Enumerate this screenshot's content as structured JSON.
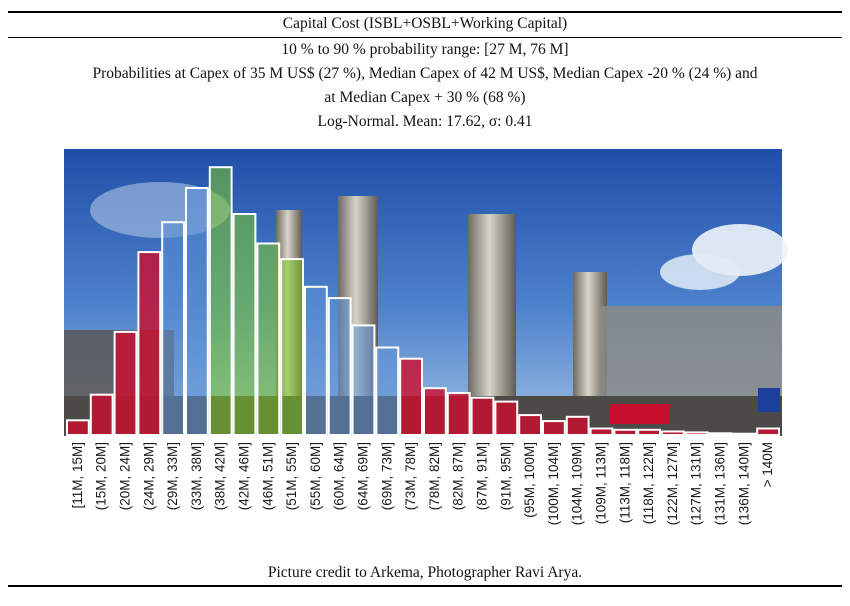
{
  "table": {
    "heading": "Capital Cost (ISBL+OSBL+Working Capital)",
    "range_line": "10 % to 90 % probability range: [27 M, 76 M]",
    "prob_line_1": "Probabilities at Capex of 35 M US$ (27 %), Median Capex of 42 M US$, Median Capex -20 % (24 %) and",
    "prob_line_2": "at Median Capex + 30 % (68 %)",
    "dist_line": "Log-Normal. Mean: 17.62, σ: 0.41",
    "credit": "Picture credit to Arkema, Photographer Ravi Arya."
  },
  "colors": {
    "red": "#c8102e",
    "blue": "#5b8fd6",
    "green": "#7ec825",
    "sky_top": "#1f4fa8",
    "sky_bottom": "#8fb6e0"
  },
  "chart_data": {
    "type": "bar",
    "categories": [
      "[11M, 15M]",
      "(15M, 20M]",
      "(20M, 24M]",
      "(24M, 29M]",
      "(29M, 33M]",
      "(33M, 38M]",
      "(38M, 42M]",
      "(42M, 46M]",
      "(46M, 51M]",
      "(51M, 55M]",
      "(55M, 60M]",
      "(60M, 64M]",
      "(64M, 69M]",
      "(69M, 73M]",
      "(73M, 78M]",
      "(78M, 82M]",
      "(82M, 87M]",
      "(87M, 91M]",
      "(91M, 95M]",
      "(95M, 100M]",
      "(100M, 104M]",
      "(104M, 109M]",
      "(109M, 113M]",
      "(113M, 118M]",
      "(118M, 122M]",
      "(122M, 127M]",
      "(127M, 131M]",
      "(131M, 136M]",
      "(136M, 140M]",
      "> 140M"
    ],
    "values": [
      3.4,
      9.3,
      23.8,
      42.2,
      49.1,
      57.0,
      61.8,
      51.0,
      44.2,
      40.6,
      34.2,
      31.6,
      25.3,
      20.2,
      17.6,
      10.8,
      9.7,
      8.6,
      7.7,
      4.6,
      3.2,
      4.2,
      1.5,
      1.2,
      1.2,
      0.8,
      0.6,
      0.4,
      0.3,
      1.5
    ],
    "band": [
      "red",
      "red",
      "red",
      "red",
      "blue",
      "blue",
      "green",
      "green",
      "green",
      "green",
      "blue",
      "blue",
      "blue",
      "blue",
      "red",
      "red",
      "red",
      "red",
      "red",
      "red",
      "red",
      "red",
      "red",
      "red",
      "red",
      "red",
      "red",
      "red",
      "red",
      "red"
    ],
    "ylim": [
      0,
      66
    ],
    "title": "",
    "xlabel": "",
    "ylabel": ""
  }
}
